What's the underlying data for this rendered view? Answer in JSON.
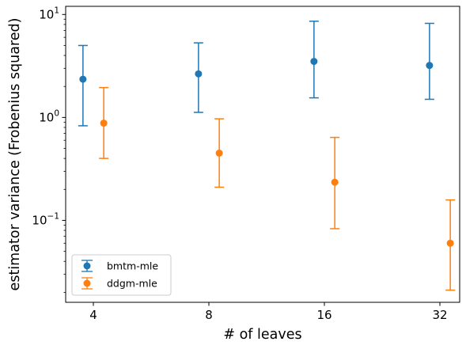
{
  "chart_data": {
    "type": "scatter",
    "title": "",
    "xlabel": "# of leaves",
    "ylabel": "estimator variance (Frobenius squared)",
    "xscale": "categorical",
    "yscale": "log",
    "ylim": [
      0.016,
      12
    ],
    "grid": false,
    "legend_position": "lower-left",
    "categories": [
      "4",
      "8",
      "16",
      "32"
    ],
    "x_tick_labels": [
      "4",
      "8",
      "16",
      "32"
    ],
    "y_ticks": [
      {
        "value": 10,
        "base": "10",
        "exp": "1"
      },
      {
        "value": 1,
        "base": "10",
        "exp": "0"
      },
      {
        "value": 0.1,
        "base": "10",
        "exp": "−1"
      }
    ],
    "series": [
      {
        "name": "bmtm-mle",
        "color": "#1f77b4",
        "offset": -0.09,
        "points": [
          {
            "x": "4",
            "y": 2.35,
            "lower": 0.83,
            "upper": 5.0
          },
          {
            "x": "8",
            "y": 2.65,
            "lower": 1.12,
            "upper": 5.3
          },
          {
            "x": "16",
            "y": 3.5,
            "lower": 1.55,
            "upper": 8.6
          },
          {
            "x": "32",
            "y": 3.2,
            "lower": 1.5,
            "upper": 8.2
          }
        ]
      },
      {
        "name": "ddgm-mle",
        "color": "#ff7f0e",
        "offset": 0.09,
        "points": [
          {
            "x": "4",
            "y": 0.88,
            "lower": 0.4,
            "upper": 1.95
          },
          {
            "x": "8",
            "y": 0.45,
            "lower": 0.21,
            "upper": 0.97
          },
          {
            "x": "16",
            "y": 0.235,
            "lower": 0.083,
            "upper": 0.64
          },
          {
            "x": "32",
            "y": 0.06,
            "lower": 0.021,
            "upper": 0.158
          }
        ]
      }
    ]
  }
}
